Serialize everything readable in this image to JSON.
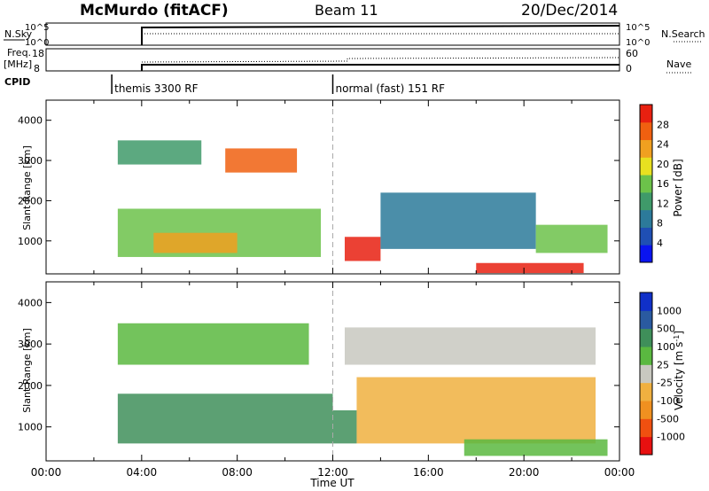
{
  "header": {
    "title": "McMurdo (fitACF)",
    "beam": "Beam 11",
    "date": "20/Dec/2014"
  },
  "top_panels": {
    "nsky_label": "N.Sky",
    "nsearch_label": "N.Search",
    "freq_label_1": "Freq.",
    "freq_label_2": "[MHz]",
    "nave_label": "Nave",
    "cpid_label": "CPID",
    "noise_ticks_left": [
      "10^5",
      "10^0"
    ],
    "noise_ticks_right": [
      "10^5",
      "10^0"
    ],
    "freq_ticks": [
      "18",
      "8"
    ],
    "nave_ticks": [
      "60",
      "0"
    ],
    "cpid_segments": [
      {
        "name": "themis 3300 RF",
        "start_hour": 2.75,
        "end_hour": 12.0
      },
      {
        "name": "normal (fast) 151 RF",
        "start_hour": 12.0,
        "end_hour": 24.0
      }
    ]
  },
  "time_axis": {
    "label": "Time UT",
    "ticks": [
      "00:00",
      "04:00",
      "08:00",
      "12:00",
      "16:00",
      "20:00",
      "00:00"
    ],
    "range_hours": [
      0,
      24
    ]
  },
  "chart_data": [
    {
      "type": "heatmap",
      "panel": "power",
      "ylabel": "Slant Range [km]",
      "ylim": [
        180,
        4500
      ],
      "y_ticks": [
        "4000",
        "3000",
        "2000",
        "1000"
      ],
      "xlim_hours": [
        0,
        24
      ],
      "data_start_hour": 2.75,
      "colorbar_label": "Power [dB]",
      "colorbar_ticks": [
        "28",
        "24",
        "20",
        "16",
        "12",
        "8",
        "4"
      ],
      "colorbar_range": [
        0,
        30
      ],
      "colorscale": [
        "#0a14f0",
        "#1f4fb4",
        "#2c7a9a",
        "#3f9a6a",
        "#6cc24a",
        "#e8e020",
        "#f0a020",
        "#f06010",
        "#e82010"
      ],
      "regions": [
        {
          "t0": 3.0,
          "t1": 11.5,
          "r0": 600,
          "r1": 1800,
          "value": 14
        },
        {
          "t0": 4.5,
          "t1": 8.0,
          "r0": 700,
          "r1": 1200,
          "value": 22
        },
        {
          "t0": 7.5,
          "t1": 10.5,
          "r0": 2700,
          "r1": 3300,
          "value": 26
        },
        {
          "t0": 3.0,
          "t1": 6.5,
          "r0": 2900,
          "r1": 3500,
          "value": 12
        },
        {
          "t0": 12.5,
          "t1": 14.0,
          "r0": 500,
          "r1": 1100,
          "value": 27
        },
        {
          "t0": 14.0,
          "t1": 20.5,
          "r0": 800,
          "r1": 2200,
          "value": 9
        },
        {
          "t0": 18.0,
          "t1": 22.5,
          "r0": 200,
          "r1": 450,
          "value": 27
        },
        {
          "t0": 20.5,
          "t1": 23.5,
          "r0": 700,
          "r1": 1400,
          "value": 15
        }
      ]
    },
    {
      "type": "heatmap",
      "panel": "velocity",
      "ylabel": "Slant Range [km]",
      "ylim": [
        180,
        4500
      ],
      "y_ticks": [
        "4000",
        "3000",
        "2000",
        "1000"
      ],
      "xlim_hours": [
        0,
        24
      ],
      "data_start_hour": 2.75,
      "colorbar_label": "Velocity [m s^-1]",
      "colorbar_ticks": [
        "1000",
        "500",
        "100",
        "25",
        "-25",
        "-100",
        "-500",
        "-1000"
      ],
      "colorbar_range": [
        -1000,
        1000
      ],
      "colorscale": [
        "#e81010",
        "#f05010",
        "#f09020",
        "#f0b040",
        "#c8c8c0",
        "#5ab840",
        "#3f8f5a",
        "#2a5aa0",
        "#1030c8"
      ],
      "regions": [
        {
          "t0": 3.0,
          "t1": 12.0,
          "r0": 600,
          "r1": 1800,
          "value": 400
        },
        {
          "t0": 3.0,
          "t1": 11.0,
          "r0": 2500,
          "r1": 3500,
          "value": 300
        },
        {
          "t0": 12.0,
          "t1": 13.0,
          "r0": 600,
          "r1": 1400,
          "value": 400
        },
        {
          "t0": 13.0,
          "t1": 23.0,
          "r0": 600,
          "r1": 2200,
          "value": -300
        },
        {
          "t0": 17.5,
          "t1": 23.5,
          "r0": 300,
          "r1": 700,
          "value": 200
        },
        {
          "t0": 12.5,
          "t1": 23.0,
          "r0": 2500,
          "r1": 3400,
          "value": 0
        }
      ]
    }
  ]
}
